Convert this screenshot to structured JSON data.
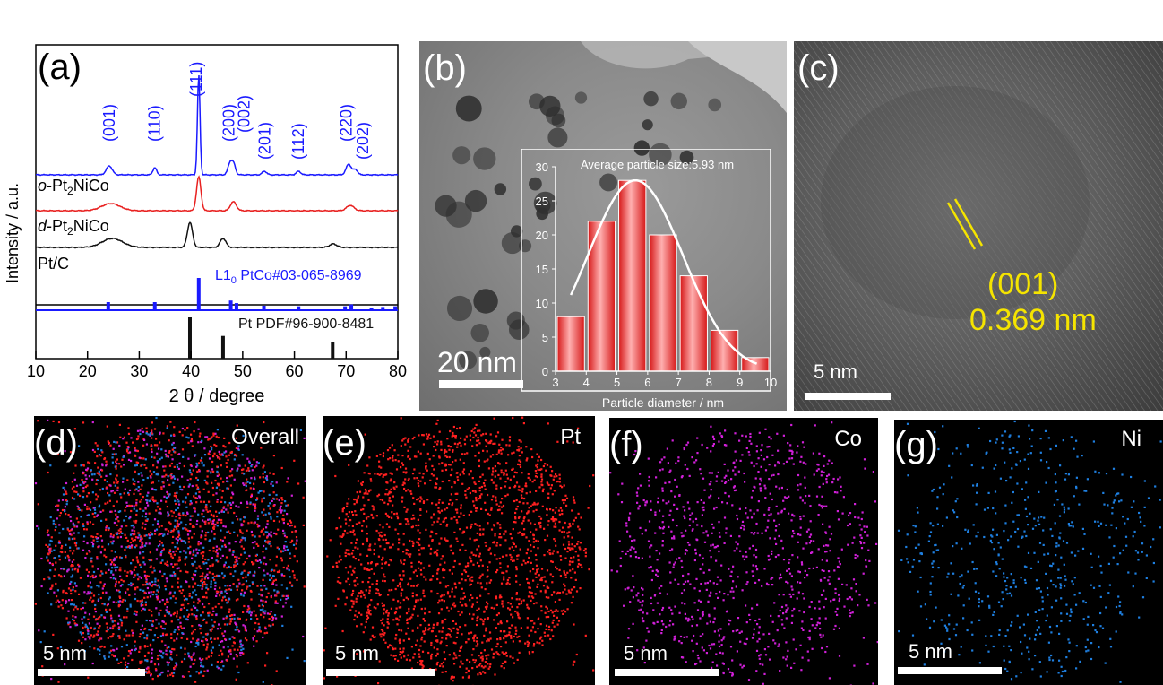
{
  "panels": {
    "a": {
      "label": "(a)"
    },
    "b": {
      "label": "(b)",
      "scalebar": "20 nm"
    },
    "c": {
      "label": "(c)",
      "scalebar": "5 nm",
      "plane": "(001)",
      "spacing": "0.369 nm"
    },
    "d": {
      "label": "(d)",
      "corner": "Overall",
      "scalebar": "5 nm"
    },
    "e": {
      "label": "(e)",
      "corner": "Pt",
      "scalebar": "5 nm"
    },
    "f": {
      "label": "(f)",
      "corner": "Co",
      "scalebar": "5 nm"
    },
    "g": {
      "label": "(g)",
      "corner": "Ni",
      "scalebar": "5 nm"
    }
  },
  "colors": {
    "blue": "#1a1aff",
    "red": "#e8201f",
    "black": "#111111",
    "pt_map": "#ff2020",
    "co_map": "#d020d8",
    "ni_map": "#1e7fe0",
    "annot_yellow": "#f5e400"
  },
  "chart_data": [
    {
      "type": "line",
      "panel": "a",
      "xlabel": "2 θ / degree",
      "ylabel": "Intensity / a.u.",
      "xlim": [
        10,
        80
      ],
      "xticks": [
        "10",
        "20",
        "30",
        "40",
        "50",
        "60",
        "70",
        "80"
      ],
      "series": [
        {
          "name": "top (blue)",
          "color": "#1a1aff",
          "peaks": [
            {
              "x": 24.2,
              "label": "(001)"
            },
            {
              "x": 33.0,
              "label": "(110)"
            },
            {
              "x": 41.5,
              "label": "(111)"
            },
            {
              "x": 47.5,
              "label": "(200)"
            },
            {
              "x": 48.5,
              "label": "(002)"
            },
            {
              "x": 54.3,
              "label": "(201)"
            },
            {
              "x": 60.8,
              "label": "(112)"
            },
            {
              "x": 70.5,
              "label": "(220)"
            },
            {
              "x": 72.3,
              "label": "(202)"
            }
          ]
        },
        {
          "name": "o-Pt2NiCo",
          "color": "#e8201f",
          "label_parts": [
            "o",
            "-Pt",
            "2",
            "NiCo"
          ]
        },
        {
          "name": "d-Pt2NiCo",
          "color": "#111111",
          "label_parts": [
            "d",
            "-Pt",
            "2",
            "NiCo"
          ]
        },
        {
          "name": "Pt/C",
          "label": "Pt/C"
        }
      ],
      "references": [
        {
          "name": "L1₀ PtCo#03-065-8969",
          "label_parts": [
            "L1",
            "0",
            " PtCo#03-065-8969"
          ],
          "color": "#1a1aff",
          "x": [
            24.0,
            33.0,
            41.5,
            47.7,
            48.8,
            54.1,
            60.8,
            69.8,
            71.0,
            74.9,
            77.1,
            79.5
          ],
          "rel": [
            0.25,
            0.25,
            1.0,
            0.3,
            0.22,
            0.14,
            0.12,
            0.12,
            0.18,
            0.08,
            0.1,
            0.12
          ]
        },
        {
          "name": "Pt PDF#96-900-8481",
          "label": "Pt PDF#96-900-8481",
          "color": "#111111",
          "x": [
            39.8,
            46.2,
            67.4
          ],
          "rel": [
            1.0,
            0.55,
            0.4
          ]
        }
      ]
    },
    {
      "type": "bar",
      "panel": "b-inset",
      "title": "Average particle size:5.93 nm",
      "xlabel": "Particle diameter / nm",
      "xlim": [
        3,
        10
      ],
      "ylim": [
        0,
        30
      ],
      "xticks": [
        "3",
        "4",
        "5",
        "6",
        "7",
        "8",
        "9",
        "10"
      ],
      "yticks": [
        "0",
        "5",
        "10",
        "15",
        "20",
        "25",
        "30"
      ],
      "categories": [
        3.5,
        4.5,
        5.5,
        6.5,
        7.5,
        8.5,
        9.5
      ],
      "values": [
        8,
        22,
        28,
        20,
        14,
        6,
        2
      ]
    }
  ]
}
